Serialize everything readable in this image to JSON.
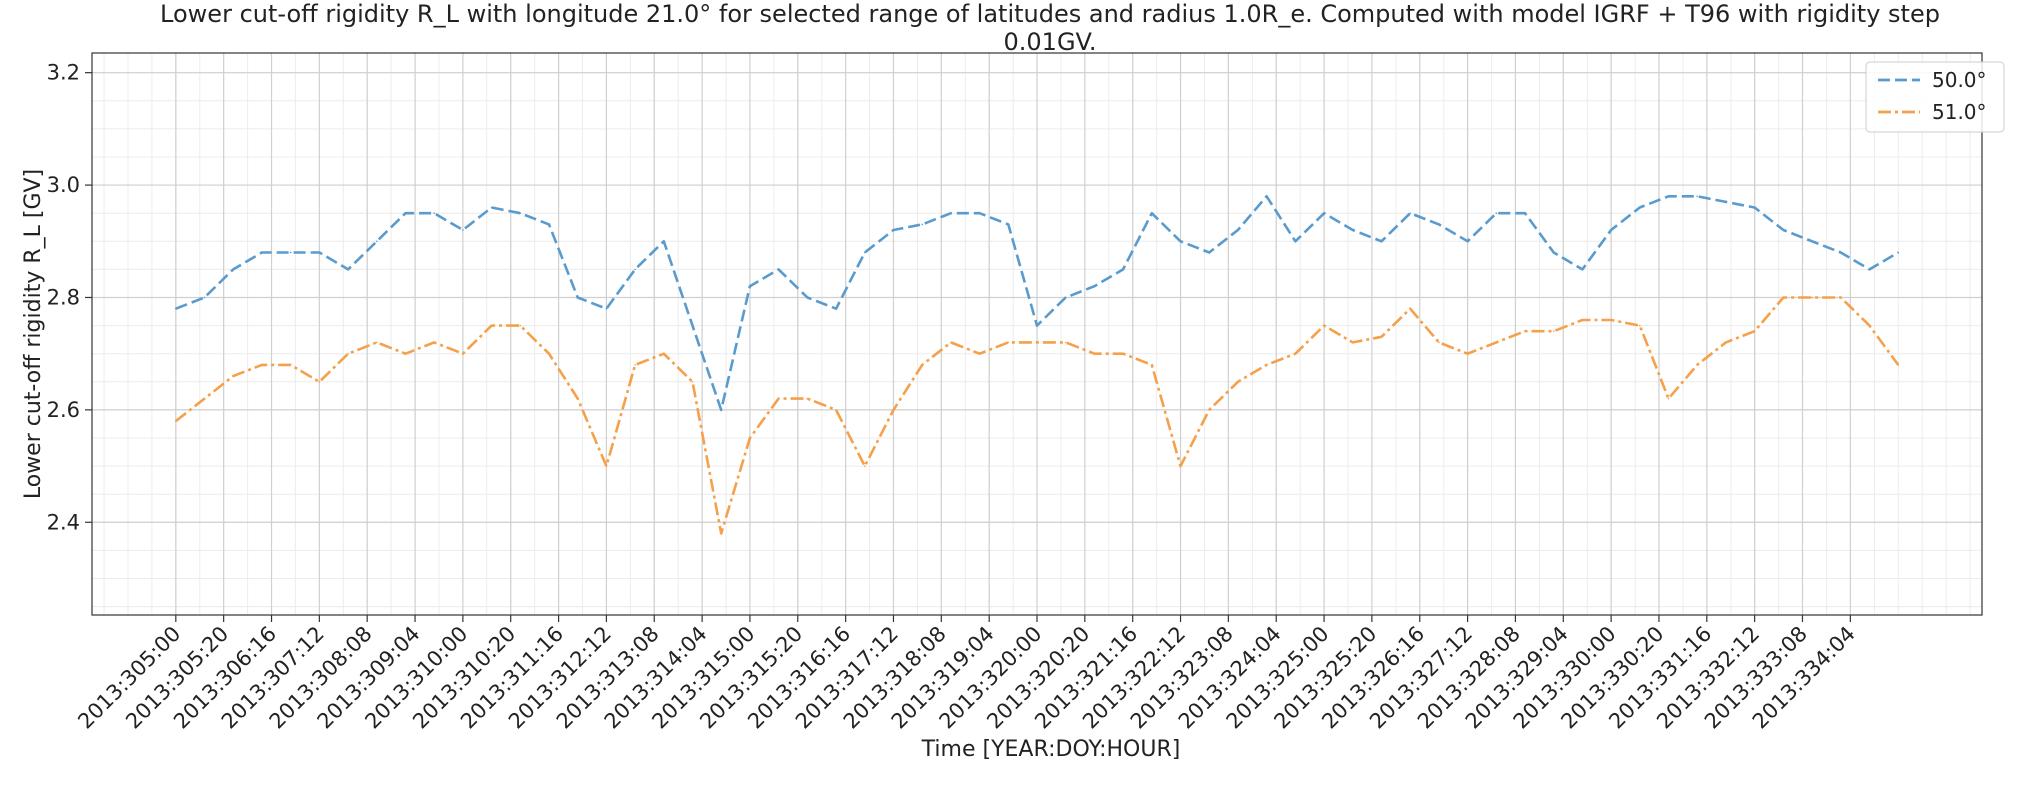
{
  "chart_data": {
    "type": "line",
    "title_line1": "Lower cut-off rigidity R_L with longitude 21.0° for selected range of latitudes and radius 1.0R_e. Computed with model IGRF + T96 with rigidity step",
    "title_line2": "0.01GV.",
    "xlabel": "Time [YEAR:DOY:HOUR]",
    "ylabel": "Lower cut-off rigidity R_L [GV]",
    "ylim": [
      2.235,
      3.235
    ],
    "yticks": [
      2.4,
      2.6,
      2.8,
      3.0,
      3.2
    ],
    "ytick_labels": [
      "2.4",
      "2.6",
      "2.8",
      "3.0",
      "3.2"
    ],
    "xlim": [
      -1.46,
      31.46
    ],
    "xticks": [
      0,
      0.833,
      1.667,
      2.5,
      3.333,
      4.167,
      5.0,
      5.833,
      6.667,
      7.5,
      8.333,
      9.167,
      10.0,
      10.833,
      11.667,
      12.5,
      13.333,
      14.167,
      15.0,
      15.833,
      16.667,
      17.5,
      18.333,
      19.167,
      20.0,
      20.833,
      21.667,
      22.5,
      23.333,
      24.167,
      25.0,
      25.833,
      26.667,
      27.5,
      28.333,
      29.167
    ],
    "xtick_labels": [
      "2013:305:00",
      "2013:305:20",
      "2013:306:16",
      "2013:307:12",
      "2013:308:08",
      "2013:309:04",
      "2013:310:00",
      "2013:310:20",
      "2013:311:16",
      "2013:312:12",
      "2013:313:08",
      "2013:314:04",
      "2013:315:00",
      "2013:315:20",
      "2013:316:16",
      "2013:317:12",
      "2013:318:08",
      "2013:319:04",
      "2013:320:00",
      "2013:320:20",
      "2013:321:16",
      "2013:322:12",
      "2013:323:08",
      "2013:324:04",
      "2013:325:00",
      "2013:325:20",
      "2013:326:16",
      "2013:327:12",
      "2013:328:08",
      "2013:329:04",
      "2013:330:00",
      "2013:330:20",
      "2013:331:16",
      "2013:332:12",
      "2013:333:08",
      "2013:334:04"
    ],
    "x_units": "days since 2013:305:00",
    "grid": true,
    "legend_position": "top-right",
    "series": [
      {
        "name": "50.0°",
        "color": "#5a9bce",
        "style": "dashed",
        "x": [
          0.0,
          0.5,
          1.0,
          1.5,
          2.0,
          2.5,
          3.0,
          3.5,
          4.0,
          4.5,
          5.0,
          5.5,
          6.0,
          6.5,
          7.0,
          7.5,
          8.0,
          8.5,
          9.0,
          9.5,
          10.0,
          10.5,
          11.0,
          11.5,
          12.0,
          12.5,
          13.0,
          13.5,
          14.0,
          14.5,
          15.0,
          15.5,
          16.0,
          16.5,
          17.0,
          17.5,
          18.0,
          18.5,
          19.0,
          19.5,
          20.0,
          20.5,
          21.0,
          21.5,
          22.0,
          22.5,
          23.0,
          23.5,
          24.0,
          24.5,
          25.0,
          25.5,
          26.0,
          26.5,
          27.0,
          27.5,
          28.0,
          28.5,
          29.0,
          29.5,
          30.0
        ],
        "values": [
          2.78,
          2.8,
          2.85,
          2.88,
          2.88,
          2.88,
          2.85,
          2.9,
          2.95,
          2.95,
          2.92,
          2.96,
          2.95,
          2.93,
          2.8,
          2.78,
          2.85,
          2.9,
          2.75,
          2.6,
          2.82,
          2.85,
          2.8,
          2.78,
          2.88,
          2.92,
          2.93,
          2.95,
          2.95,
          2.93,
          2.75,
          2.8,
          2.82,
          2.85,
          2.95,
          2.9,
          2.88,
          2.92,
          2.98,
          2.9,
          2.95,
          2.92,
          2.9,
          2.95,
          2.93,
          2.9,
          2.95,
          2.95,
          2.88,
          2.85,
          2.92,
          2.96,
          2.98,
          2.98,
          2.97,
          2.96,
          2.92,
          2.9,
          2.88,
          2.85,
          2.88
        ]
      },
      {
        "name": "51.0°",
        "color": "#f5a04a",
        "style": "dashdot",
        "x": [
          0.0,
          0.5,
          1.0,
          1.5,
          2.0,
          2.5,
          3.0,
          3.5,
          4.0,
          4.5,
          5.0,
          5.5,
          6.0,
          6.5,
          7.0,
          7.5,
          8.0,
          8.5,
          9.0,
          9.5,
          10.0,
          10.5,
          11.0,
          11.5,
          12.0,
          12.5,
          13.0,
          13.5,
          14.0,
          14.5,
          15.0,
          15.5,
          16.0,
          16.5,
          17.0,
          17.5,
          18.0,
          18.5,
          19.0,
          19.5,
          20.0,
          20.5,
          21.0,
          21.5,
          22.0,
          22.5,
          23.0,
          23.5,
          24.0,
          24.5,
          25.0,
          25.5,
          26.0,
          26.5,
          27.0,
          27.5,
          28.0,
          28.5,
          29.0,
          29.5,
          30.0
        ],
        "values": [
          2.58,
          2.62,
          2.66,
          2.68,
          2.68,
          2.65,
          2.7,
          2.72,
          2.7,
          2.72,
          2.7,
          2.75,
          2.75,
          2.7,
          2.62,
          2.5,
          2.68,
          2.7,
          2.65,
          2.38,
          2.55,
          2.62,
          2.62,
          2.6,
          2.5,
          2.6,
          2.68,
          2.72,
          2.7,
          2.72,
          2.72,
          2.72,
          2.7,
          2.7,
          2.68,
          2.5,
          2.6,
          2.65,
          2.68,
          2.7,
          2.75,
          2.72,
          2.73,
          2.78,
          2.72,
          2.7,
          2.72,
          2.74,
          2.74,
          2.76,
          2.76,
          2.75,
          2.62,
          2.68,
          2.72,
          2.74,
          2.8,
          2.8,
          2.8,
          2.75,
          2.68
        ]
      }
    ]
  }
}
